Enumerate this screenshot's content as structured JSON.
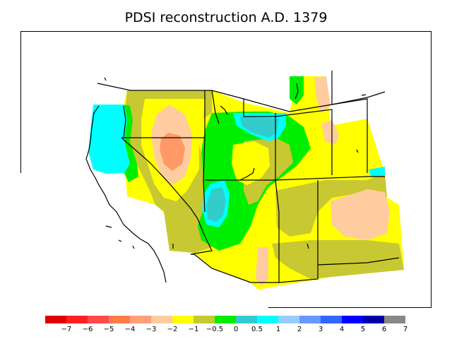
{
  "title": "PDSI reconstruction A.D. 1379",
  "legend": {
    "colors": [
      "#dd0000",
      "#ff2020",
      "#ff4a4a",
      "#ff7a4a",
      "#ffa07a",
      "#ffcca0",
      "#ffff00",
      "#c8c832",
      "#00ee00",
      "#33cccc",
      "#00ffff",
      "#99ccff",
      "#6699ff",
      "#3366ff",
      "#0000ff",
      "#0000aa",
      "#888888"
    ],
    "labels": [
      "−7",
      "−6",
      "−5",
      "−4",
      "−3",
      "−2",
      "−1",
      "−0.5",
      "0",
      "0.5",
      "1",
      "2",
      "3",
      "4",
      "5",
      "6",
      "7"
    ]
  },
  "fills": {
    "yellow": "#ffff00",
    "olive": "#c8c832",
    "green": "#00ee00",
    "cyan_dark": "#33cccc",
    "cyan": "#00ffff",
    "peach": "#ffcca0",
    "salmon": "#ff9966"
  }
}
